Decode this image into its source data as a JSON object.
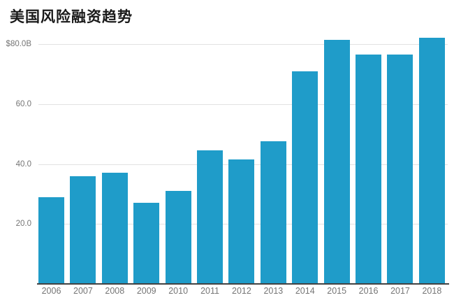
{
  "title": "美国风险融资趋势",
  "colors": {
    "bar": "#1f9cc9",
    "gridline": "#e2e2e2",
    "axis_line": "#424242",
    "tick_text": "#757575",
    "title_text": "#1a1a1a",
    "background": "#ffffff"
  },
  "chart_data": {
    "type": "bar",
    "title": "美国风险融资趋势",
    "categories": [
      "2006",
      "2007",
      "2008",
      "2009",
      "2010",
      "2011",
      "2012",
      "2013",
      "2014",
      "2015",
      "2016",
      "2017",
      "2018"
    ],
    "values": [
      29,
      36,
      37,
      27,
      31,
      44.5,
      41.5,
      47.5,
      71,
      81.5,
      76.5,
      76.5,
      82
    ],
    "unit": "billions USD",
    "xlabel": "",
    "ylabel": "",
    "ylim": [
      0,
      80
    ],
    "y_ticks": [
      {
        "value": 80,
        "label": "$80.0B"
      },
      {
        "value": 60,
        "label": "60.0"
      },
      {
        "value": 40,
        "label": "40.0"
      },
      {
        "value": 20,
        "label": "20.0"
      }
    ],
    "grid": true,
    "legend_position": "none",
    "bar_color": "#1f9cc9"
  }
}
